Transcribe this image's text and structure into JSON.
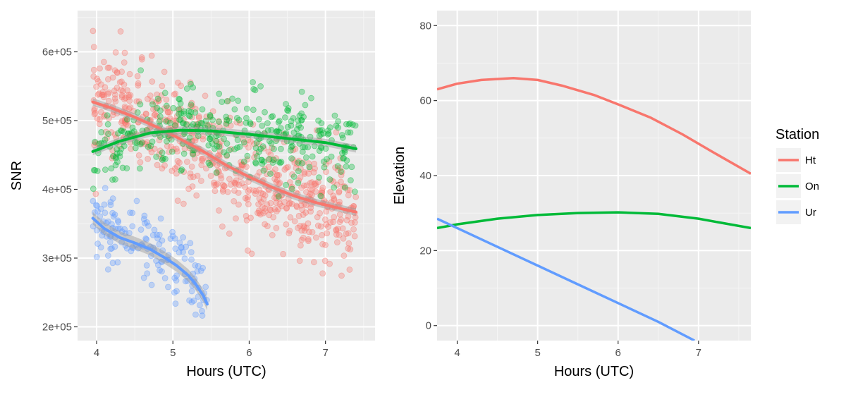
{
  "chart_data": [
    {
      "type": "scatter",
      "title": "",
      "xlabel": "Hours (UTC)",
      "ylabel": "SNR",
      "xlim": [
        3.75,
        7.65
      ],
      "ylim": [
        180000,
        660000
      ],
      "xticks": [
        4,
        5,
        6,
        7
      ],
      "xtick_labels": [
        "4",
        "5",
        "6",
        "7"
      ],
      "yticks": [
        200000,
        300000,
        400000,
        500000,
        600000
      ],
      "ytick_labels": [
        "2e+05",
        "3e+05",
        "4e+05",
        "5e+05",
        "6e+05"
      ],
      "grid": true,
      "series": [
        {
          "name": "Ht",
          "color": "#F8766D",
          "x_range": [
            3.95,
            7.4
          ],
          "smooth": {
            "x": [
              3.95,
              4.2,
              4.5,
              4.8,
              5.1,
              5.4,
              5.7,
              6.0,
              6.3,
              6.6,
              6.9,
              7.2,
              7.4
            ],
            "y": [
              527000,
              518000,
              505000,
              490000,
              473000,
              455000,
              435000,
              418000,
              403000,
              390000,
              380000,
              372000,
              367000
            ]
          }
        },
        {
          "name": "On",
          "color": "#00BA38",
          "x_range": [
            3.95,
            7.4
          ],
          "smooth": {
            "x": [
              3.95,
              4.3,
              4.7,
              5.1,
              5.5,
              6.0,
              6.5,
              7.0,
              7.4
            ],
            "y": [
              455000,
              470000,
              482000,
              486000,
              485000,
              480000,
              474000,
              468000,
              459000
            ]
          }
        },
        {
          "name": "Ur",
          "color": "#619CFF",
          "x_range": [
            3.95,
            5.45
          ],
          "smooth": {
            "x": [
              3.95,
              4.1,
              4.3,
              4.5,
              4.7,
              4.9,
              5.05,
              5.2,
              5.3,
              5.4,
              5.45
            ],
            "y": [
              358000,
              343000,
              330000,
              322000,
              313000,
              300000,
              289000,
              275000,
              262000,
              245000,
              233000
            ]
          }
        }
      ]
    },
    {
      "type": "line",
      "title": "",
      "xlabel": "Hours (UTC)",
      "ylabel": "Elevation",
      "xlim": [
        3.75,
        7.65
      ],
      "ylim": [
        -4,
        84
      ],
      "xticks": [
        4,
        5,
        6,
        7
      ],
      "xtick_labels": [
        "4",
        "5",
        "6",
        "7"
      ],
      "yticks": [
        0,
        20,
        40,
        60,
        80
      ],
      "ytick_labels": [
        "0",
        "20",
        "40",
        "60",
        "80"
      ],
      "grid": true,
      "series": [
        {
          "name": "Ht",
          "color": "#F8766D",
          "x": [
            3.75,
            4.0,
            4.3,
            4.7,
            5.0,
            5.3,
            5.7,
            6.0,
            6.4,
            6.8,
            7.2,
            7.65
          ],
          "y": [
            63,
            64.5,
            65.5,
            66,
            65.5,
            64,
            61.5,
            59,
            55.5,
            51,
            46,
            40.5
          ]
        },
        {
          "name": "On",
          "color": "#00BA38",
          "x": [
            3.75,
            4.0,
            4.5,
            5.0,
            5.5,
            6.0,
            6.5,
            7.0,
            7.65
          ],
          "y": [
            26,
            27,
            28.5,
            29.5,
            30,
            30.2,
            29.8,
            28.5,
            26
          ]
        },
        {
          "name": "Ur",
          "color": "#619CFF",
          "x": [
            3.75,
            4.0,
            4.5,
            5.0,
            5.5,
            6.0,
            6.5,
            6.95
          ],
          "y": [
            28.5,
            26,
            21,
            16,
            11,
            6,
            1,
            -4
          ]
        }
      ]
    }
  ],
  "legend": {
    "title": "Station",
    "position": "right",
    "items": [
      {
        "label": "Ht",
        "color": "#F8766D"
      },
      {
        "label": "On",
        "color": "#00BA38"
      },
      {
        "label": "Ur",
        "color": "#619CFF"
      }
    ]
  }
}
